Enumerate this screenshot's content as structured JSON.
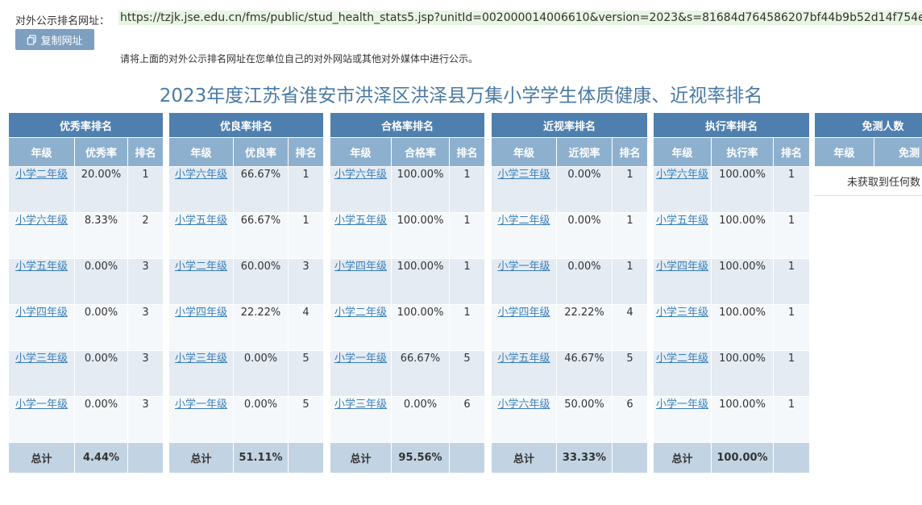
{
  "header": {
    "url_label": "对外公示排名网址：",
    "url": "https://tzjk.jse.edu.cn/fms/public/stud_health_stats5.jsp?unitId=002000014006610&version=2023&s=81684d764586207bf44b9b52d14f754e",
    "copy_button": "复制网址",
    "hint": "请将上面的对外公示排名网址在您单位自己的对外网站或其他对外媒体中进行公示。"
  },
  "title": "2023年度江苏省淮安市洪泽区洪泽县万集小学学生体质健康、近视率排名",
  "tables": [
    {
      "title": "优秀率排名",
      "cols": [
        "年级",
        "优秀率",
        "排名"
      ],
      "rows": [
        {
          "grade": "小学二年级",
          "value": "20.00%",
          "rank": "1"
        },
        {
          "grade": "小学六年级",
          "value": "8.33%",
          "rank": "2"
        },
        {
          "grade": "小学五年级",
          "value": "0.00%",
          "rank": "3"
        },
        {
          "grade": "小学四年级",
          "value": "0.00%",
          "rank": "3"
        },
        {
          "grade": "小学三年级",
          "value": "0.00%",
          "rank": "3"
        },
        {
          "grade": "小学一年级",
          "value": "0.00%",
          "rank": "3"
        }
      ],
      "total_label": "总计",
      "total_value": "4.44%"
    },
    {
      "title": "优良率排名",
      "cols": [
        "年级",
        "优良率",
        "排名"
      ],
      "rows": [
        {
          "grade": "小学六年级",
          "value": "66.67%",
          "rank": "1"
        },
        {
          "grade": "小学五年级",
          "value": "66.67%",
          "rank": "1"
        },
        {
          "grade": "小学二年级",
          "value": "60.00%",
          "rank": "3"
        },
        {
          "grade": "小学四年级",
          "value": "22.22%",
          "rank": "4"
        },
        {
          "grade": "小学三年级",
          "value": "0.00%",
          "rank": "5"
        },
        {
          "grade": "小学一年级",
          "value": "0.00%",
          "rank": "5"
        }
      ],
      "total_label": "总计",
      "total_value": "51.11%"
    },
    {
      "title": "合格率排名",
      "cols": [
        "年级",
        "合格率",
        "排名"
      ],
      "rows": [
        {
          "grade": "小学六年级",
          "value": "100.00%",
          "rank": "1"
        },
        {
          "grade": "小学五年级",
          "value": "100.00%",
          "rank": "1"
        },
        {
          "grade": "小学四年级",
          "value": "100.00%",
          "rank": "1"
        },
        {
          "grade": "小学二年级",
          "value": "100.00%",
          "rank": "1"
        },
        {
          "grade": "小学一年级",
          "value": "66.67%",
          "rank": "5"
        },
        {
          "grade": "小学三年级",
          "value": "0.00%",
          "rank": "6"
        }
      ],
      "total_label": "总计",
      "total_value": "95.56%"
    },
    {
      "title": "近视率排名",
      "cols": [
        "年级",
        "近视率",
        "排名"
      ],
      "rows": [
        {
          "grade": "小学三年级",
          "value": "0.00%",
          "rank": "1"
        },
        {
          "grade": "小学二年级",
          "value": "0.00%",
          "rank": "1"
        },
        {
          "grade": "小学一年级",
          "value": "0.00%",
          "rank": "1"
        },
        {
          "grade": "小学四年级",
          "value": "22.22%",
          "rank": "4"
        },
        {
          "grade": "小学五年级",
          "value": "46.67%",
          "rank": "5"
        },
        {
          "grade": "小学六年级",
          "value": "50.00%",
          "rank": "6"
        }
      ],
      "total_label": "总计",
      "total_value": "33.33%"
    },
    {
      "title": "执行率排名",
      "cols": [
        "年级",
        "执行率",
        "排名"
      ],
      "rows": [
        {
          "grade": "小学六年级",
          "value": "100.00%",
          "rank": "1"
        },
        {
          "grade": "小学五年级",
          "value": "100.00%",
          "rank": "1"
        },
        {
          "grade": "小学四年级",
          "value": "100.00%",
          "rank": "1"
        },
        {
          "grade": "小学三年级",
          "value": "100.00%",
          "rank": "1"
        },
        {
          "grade": "小学二年级",
          "value": "100.00%",
          "rank": "1"
        },
        {
          "grade": "小学一年级",
          "value": "100.00%",
          "rank": "1"
        }
      ],
      "total_label": "总计",
      "total_value": "100.00%"
    }
  ],
  "exempt_table": {
    "title": "免测人数",
    "cols": [
      "年级",
      "免测"
    ],
    "no_data": "未获取到任何数"
  }
}
